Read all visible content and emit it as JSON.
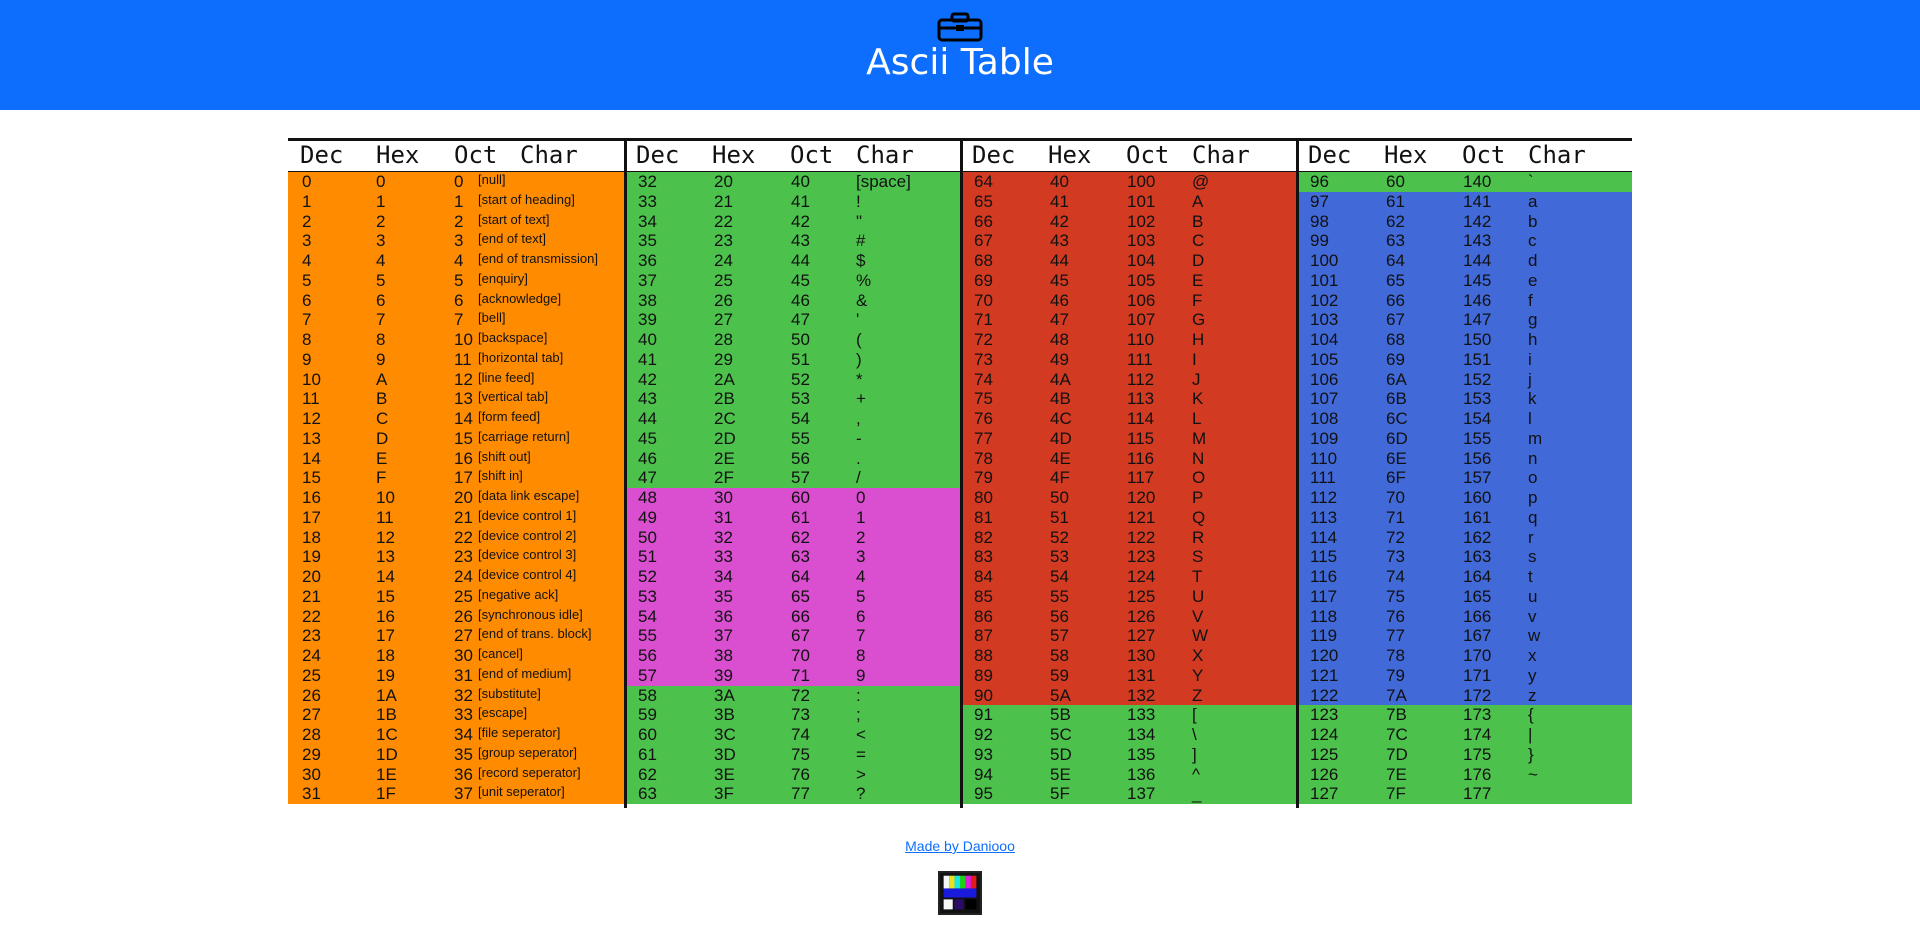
{
  "header": {
    "title": "Ascii Table",
    "icon": "toolbox-icon"
  },
  "columns": [
    {
      "headers": [
        "Dec",
        "Hex",
        "Oct",
        "Char"
      ]
    },
    {
      "headers": [
        "Dec",
        "Hex",
        "Oct",
        "Char"
      ]
    },
    {
      "headers": [
        "Dec",
        "Hex",
        "Oct",
        "Char"
      ]
    },
    {
      "headers": [
        "Dec",
        "Hex",
        "Oct",
        "Char"
      ]
    }
  ],
  "colors": {
    "orange": "#ff8c00",
    "green": "#4cc24c",
    "magenta": "#d94fd0",
    "red": "#d23a22",
    "blue": "#4169d8",
    "header": "#0d6efd"
  },
  "rows": [
    [
      [
        "0",
        "0",
        "0",
        "[null]"
      ],
      [
        "32",
        "20",
        "40",
        "[space]"
      ],
      [
        "64",
        "40",
        "100",
        "@"
      ],
      [
        "96",
        "60",
        "140",
        "`"
      ]
    ],
    [
      [
        "1",
        "1",
        "1",
        "[start of heading]"
      ],
      [
        "33",
        "21",
        "41",
        "!"
      ],
      [
        "65",
        "41",
        "101",
        "A"
      ],
      [
        "97",
        "61",
        "141",
        "a"
      ]
    ],
    [
      [
        "2",
        "2",
        "2",
        "[start of text]"
      ],
      [
        "34",
        "22",
        "42",
        "\""
      ],
      [
        "66",
        "42",
        "102",
        "B"
      ],
      [
        "98",
        "62",
        "142",
        "b"
      ]
    ],
    [
      [
        "3",
        "3",
        "3",
        "[end of text]"
      ],
      [
        "35",
        "23",
        "43",
        "#"
      ],
      [
        "67",
        "43",
        "103",
        "C"
      ],
      [
        "99",
        "63",
        "143",
        "c"
      ]
    ],
    [
      [
        "4",
        "4",
        "4",
        "[end of transmission]"
      ],
      [
        "36",
        "24",
        "44",
        "$"
      ],
      [
        "68",
        "44",
        "104",
        "D"
      ],
      [
        "100",
        "64",
        "144",
        "d"
      ]
    ],
    [
      [
        "5",
        "5",
        "5",
        "[enquiry]"
      ],
      [
        "37",
        "25",
        "45",
        "%"
      ],
      [
        "69",
        "45",
        "105",
        "E"
      ],
      [
        "101",
        "65",
        "145",
        "e"
      ]
    ],
    [
      [
        "6",
        "6",
        "6",
        "[acknowledge]"
      ],
      [
        "38",
        "26",
        "46",
        "&"
      ],
      [
        "70",
        "46",
        "106",
        "F"
      ],
      [
        "102",
        "66",
        "146",
        "f"
      ]
    ],
    [
      [
        "7",
        "7",
        "7",
        "[bell]"
      ],
      [
        "39",
        "27",
        "47",
        "'"
      ],
      [
        "71",
        "47",
        "107",
        "G"
      ],
      [
        "103",
        "67",
        "147",
        "g"
      ]
    ],
    [
      [
        "8",
        "8",
        "10",
        "[backspace]"
      ],
      [
        "40",
        "28",
        "50",
        "("
      ],
      [
        "72",
        "48",
        "110",
        "H"
      ],
      [
        "104",
        "68",
        "150",
        "h"
      ]
    ],
    [
      [
        "9",
        "9",
        "11",
        "[horizontal tab]"
      ],
      [
        "41",
        "29",
        "51",
        ")"
      ],
      [
        "73",
        "49",
        "111",
        "I"
      ],
      [
        "105",
        "69",
        "151",
        "i"
      ]
    ],
    [
      [
        "10",
        "A",
        "12",
        "[line feed]"
      ],
      [
        "42",
        "2A",
        "52",
        "*"
      ],
      [
        "74",
        "4A",
        "112",
        "J"
      ],
      [
        "106",
        "6A",
        "152",
        "j"
      ]
    ],
    [
      [
        "11",
        "B",
        "13",
        "[vertical tab]"
      ],
      [
        "43",
        "2B",
        "53",
        "+"
      ],
      [
        "75",
        "4B",
        "113",
        "K"
      ],
      [
        "107",
        "6B",
        "153",
        "k"
      ]
    ],
    [
      [
        "12",
        "C",
        "14",
        "[form feed]"
      ],
      [
        "44",
        "2C",
        "54",
        ","
      ],
      [
        "76",
        "4C",
        "114",
        "L"
      ],
      [
        "108",
        "6C",
        "154",
        "l"
      ]
    ],
    [
      [
        "13",
        "D",
        "15",
        "[carriage return]"
      ],
      [
        "45",
        "2D",
        "55",
        "-"
      ],
      [
        "77",
        "4D",
        "115",
        "M"
      ],
      [
        "109",
        "6D",
        "155",
        "m"
      ]
    ],
    [
      [
        "14",
        "E",
        "16",
        "[shift out]"
      ],
      [
        "46",
        "2E",
        "56",
        "."
      ],
      [
        "78",
        "4E",
        "116",
        "N"
      ],
      [
        "110",
        "6E",
        "156",
        "n"
      ]
    ],
    [
      [
        "15",
        "F",
        "17",
        "[shift in]"
      ],
      [
        "47",
        "2F",
        "57",
        "/"
      ],
      [
        "79",
        "4F",
        "117",
        "O"
      ],
      [
        "111",
        "6F",
        "157",
        "o"
      ]
    ],
    [
      [
        "16",
        "10",
        "20",
        "[data link escape]"
      ],
      [
        "48",
        "30",
        "60",
        "0"
      ],
      [
        "80",
        "50",
        "120",
        "P"
      ],
      [
        "112",
        "70",
        "160",
        "p"
      ]
    ],
    [
      [
        "17",
        "11",
        "21",
        "[device control 1]"
      ],
      [
        "49",
        "31",
        "61",
        "1"
      ],
      [
        "81",
        "51",
        "121",
        "Q"
      ],
      [
        "113",
        "71",
        "161",
        "q"
      ]
    ],
    [
      [
        "18",
        "12",
        "22",
        "[device control 2]"
      ],
      [
        "50",
        "32",
        "62",
        "2"
      ],
      [
        "82",
        "52",
        "122",
        "R"
      ],
      [
        "114",
        "72",
        "162",
        "r"
      ]
    ],
    [
      [
        "19",
        "13",
        "23",
        "[device control 3]"
      ],
      [
        "51",
        "33",
        "63",
        "3"
      ],
      [
        "83",
        "53",
        "123",
        "S"
      ],
      [
        "115",
        "73",
        "163",
        "s"
      ]
    ],
    [
      [
        "20",
        "14",
        "24",
        "[device control 4]"
      ],
      [
        "52",
        "34",
        "64",
        "4"
      ],
      [
        "84",
        "54",
        "124",
        "T"
      ],
      [
        "116",
        "74",
        "164",
        "t"
      ]
    ],
    [
      [
        "21",
        "15",
        "25",
        "[negative ack]"
      ],
      [
        "53",
        "35",
        "65",
        "5"
      ],
      [
        "85",
        "55",
        "125",
        "U"
      ],
      [
        "117",
        "75",
        "165",
        "u"
      ]
    ],
    [
      [
        "22",
        "16",
        "26",
        "[synchronous idle]"
      ],
      [
        "54",
        "36",
        "66",
        "6"
      ],
      [
        "86",
        "56",
        "126",
        "V"
      ],
      [
        "118",
        "76",
        "166",
        "v"
      ]
    ],
    [
      [
        "23",
        "17",
        "27",
        "[end of trans. block]"
      ],
      [
        "55",
        "37",
        "67",
        "7"
      ],
      [
        "87",
        "57",
        "127",
        "W"
      ],
      [
        "119",
        "77",
        "167",
        "w"
      ]
    ],
    [
      [
        "24",
        "18",
        "30",
        "[cancel]"
      ],
      [
        "56",
        "38",
        "70",
        "8"
      ],
      [
        "88",
        "58",
        "130",
        "X"
      ],
      [
        "120",
        "78",
        "170",
        "x"
      ]
    ],
    [
      [
        "25",
        "19",
        "31",
        "[end of medium]"
      ],
      [
        "57",
        "39",
        "71",
        "9"
      ],
      [
        "89",
        "59",
        "131",
        "Y"
      ],
      [
        "121",
        "79",
        "171",
        "y"
      ]
    ],
    [
      [
        "26",
        "1A",
        "32",
        "[substitute]"
      ],
      [
        "58",
        "3A",
        "72",
        ":"
      ],
      [
        "90",
        "5A",
        "132",
        "Z"
      ],
      [
        "122",
        "7A",
        "172",
        "z"
      ]
    ],
    [
      [
        "27",
        "1B",
        "33",
        "[escape]"
      ],
      [
        "59",
        "3B",
        "73",
        ";"
      ],
      [
        "91",
        "5B",
        "133",
        "["
      ],
      [
        "123",
        "7B",
        "173",
        "{"
      ]
    ],
    [
      [
        "28",
        "1C",
        "34",
        "[file seperator]"
      ],
      [
        "60",
        "3C",
        "74",
        "<"
      ],
      [
        "92",
        "5C",
        "134",
        "\\"
      ],
      [
        "124",
        "7C",
        "174",
        "|"
      ]
    ],
    [
      [
        "29",
        "1D",
        "35",
        "[group seperator]"
      ],
      [
        "61",
        "3D",
        "75",
        "="
      ],
      [
        "93",
        "5D",
        "135",
        "]"
      ],
      [
        "125",
        "7D",
        "175",
        "}"
      ]
    ],
    [
      [
        "30",
        "1E",
        "36",
        "[record seperator]"
      ],
      [
        "62",
        "3E",
        "76",
        ">"
      ],
      [
        "94",
        "5E",
        "136",
        "^"
      ],
      [
        "126",
        "7E",
        "176",
        "~"
      ]
    ],
    [
      [
        "31",
        "1F",
        "37",
        "[unit seperator]"
      ],
      [
        "63",
        "3F",
        "77",
        "?"
      ],
      [
        "95",
        "5F",
        "137",
        "_"
      ],
      [
        "127",
        "7F",
        "177",
        ""
      ]
    ]
  ],
  "footer": {
    "link_text": "Made by Daniooo",
    "logo": "daniooo-logo"
  }
}
